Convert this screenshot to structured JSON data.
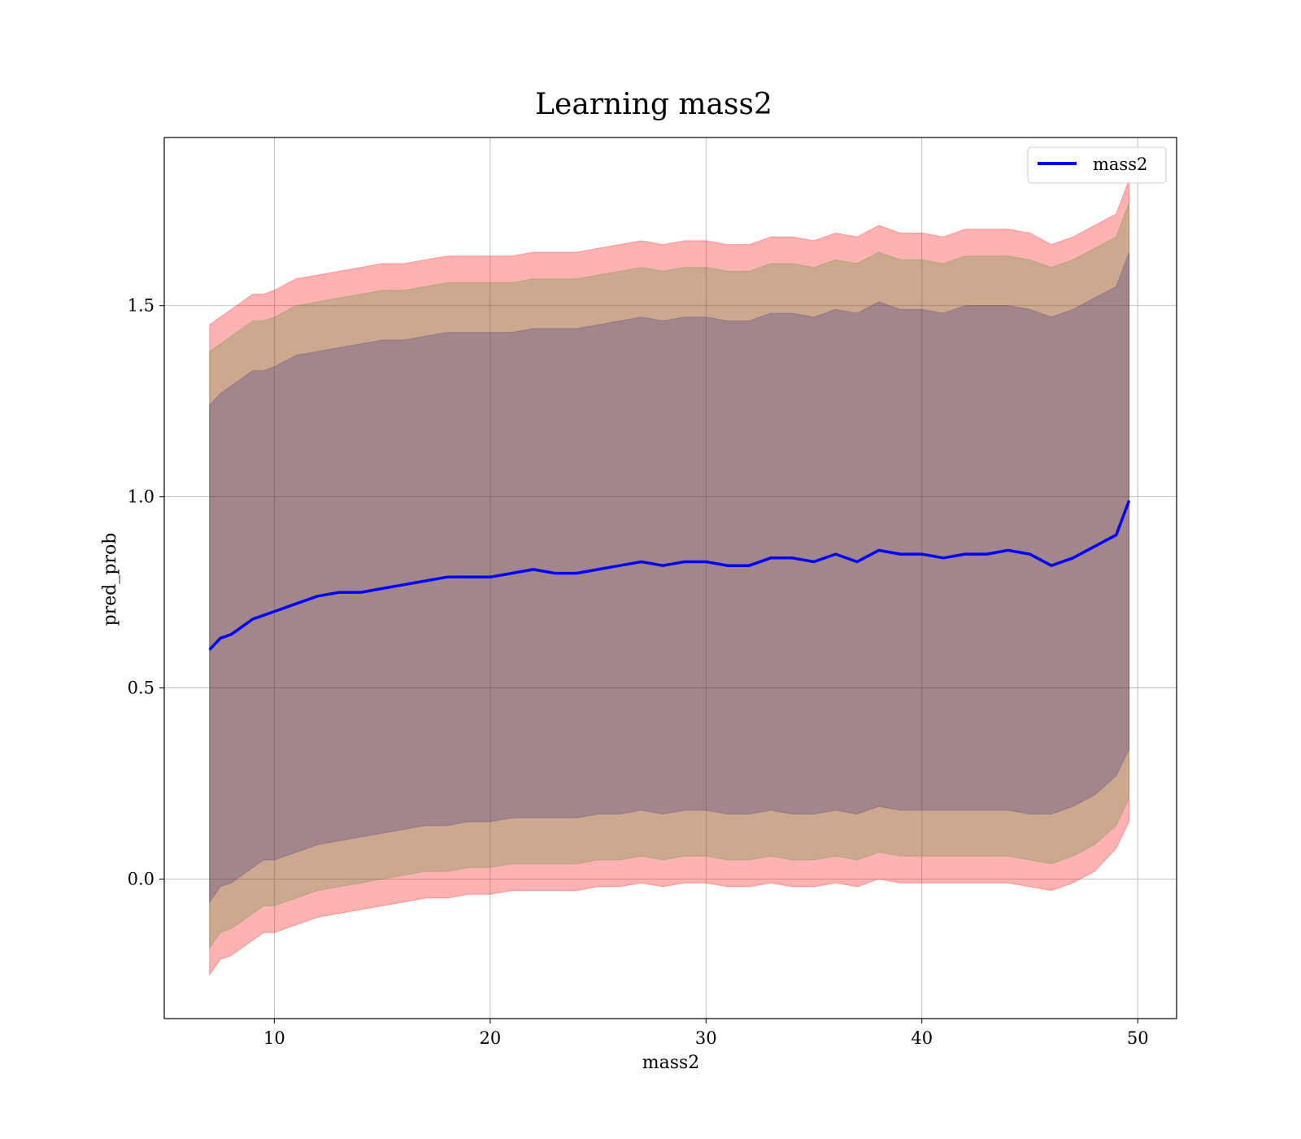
{
  "chart_data": {
    "type": "line",
    "title": "Learning mass2",
    "xlabel": "mass2",
    "ylabel": "pred_prob",
    "xlim": [
      4.9,
      51.8
    ],
    "ylim": [
      -0.365,
      1.94
    ],
    "xticks": [
      10,
      20,
      30,
      40,
      50
    ],
    "xtick_labels": [
      "10",
      "20",
      "30",
      "40",
      "50"
    ],
    "yticks": [
      0.0,
      0.5,
      1.0,
      1.5
    ],
    "ytick_labels": [
      "0.0",
      "0.5",
      "1.0",
      "1.5"
    ],
    "grid": true,
    "legend_position": "top-right",
    "series": [
      {
        "name": "mass2",
        "color": "#0000ff",
        "x": [
          7.0,
          7.5,
          8.0,
          8.5,
          9.0,
          9.5,
          10.0,
          11.0,
          12.0,
          13.0,
          14.0,
          15.0,
          16.0,
          17.0,
          18.0,
          19.0,
          20.0,
          21.0,
          22.0,
          23.0,
          24.0,
          25.0,
          26.0,
          27.0,
          28.0,
          29.0,
          30.0,
          31.0,
          32.0,
          33.0,
          34.0,
          35.0,
          36.0,
          37.0,
          38.0,
          39.0,
          40.0,
          41.0,
          42.0,
          43.0,
          44.0,
          45.0,
          46.0,
          47.0,
          48.0,
          49.0,
          49.6
        ],
        "y": [
          0.6,
          0.63,
          0.64,
          0.66,
          0.68,
          0.69,
          0.7,
          0.72,
          0.74,
          0.75,
          0.75,
          0.76,
          0.77,
          0.78,
          0.79,
          0.79,
          0.79,
          0.8,
          0.81,
          0.8,
          0.8,
          0.81,
          0.82,
          0.83,
          0.82,
          0.83,
          0.83,
          0.82,
          0.82,
          0.84,
          0.84,
          0.83,
          0.85,
          0.83,
          0.86,
          0.85,
          0.85,
          0.84,
          0.85,
          0.85,
          0.86,
          0.85,
          0.82,
          0.84,
          0.87,
          0.9,
          0.99
        ]
      }
    ],
    "bands": [
      {
        "color": "#ff0000",
        "opacity": 0.3,
        "lower": [
          -0.25,
          -0.21,
          -0.2,
          -0.18,
          -0.16,
          -0.14,
          -0.14,
          -0.12,
          -0.1,
          -0.09,
          -0.08,
          -0.07,
          -0.06,
          -0.05,
          -0.05,
          -0.04,
          -0.04,
          -0.03,
          -0.03,
          -0.03,
          -0.03,
          -0.02,
          -0.02,
          -0.01,
          -0.02,
          -0.01,
          -0.01,
          -0.02,
          -0.02,
          -0.01,
          -0.02,
          -0.02,
          -0.01,
          -0.02,
          0.0,
          -0.01,
          -0.01,
          -0.01,
          -0.01,
          -0.01,
          -0.01,
          -0.02,
          -0.03,
          -0.01,
          0.02,
          0.08,
          0.15
        ],
        "upper": [
          1.45,
          1.47,
          1.49,
          1.51,
          1.53,
          1.53,
          1.54,
          1.57,
          1.58,
          1.59,
          1.6,
          1.61,
          1.61,
          1.62,
          1.63,
          1.63,
          1.63,
          1.63,
          1.64,
          1.64,
          1.64,
          1.65,
          1.66,
          1.67,
          1.66,
          1.67,
          1.67,
          1.66,
          1.66,
          1.68,
          1.68,
          1.67,
          1.69,
          1.68,
          1.71,
          1.69,
          1.69,
          1.68,
          1.7,
          1.7,
          1.7,
          1.69,
          1.66,
          1.68,
          1.71,
          1.74,
          1.83
        ]
      },
      {
        "color": "#008000",
        "opacity": 0.2,
        "lower": [
          -0.18,
          -0.14,
          -0.13,
          -0.11,
          -0.09,
          -0.07,
          -0.07,
          -0.05,
          -0.03,
          -0.02,
          -0.01,
          0.0,
          0.01,
          0.02,
          0.02,
          0.03,
          0.03,
          0.04,
          0.04,
          0.04,
          0.04,
          0.05,
          0.05,
          0.06,
          0.05,
          0.06,
          0.06,
          0.05,
          0.05,
          0.06,
          0.05,
          0.05,
          0.06,
          0.05,
          0.07,
          0.06,
          0.06,
          0.06,
          0.06,
          0.06,
          0.06,
          0.05,
          0.04,
          0.06,
          0.09,
          0.14,
          0.21
        ],
        "upper": [
          1.38,
          1.4,
          1.42,
          1.44,
          1.46,
          1.46,
          1.47,
          1.5,
          1.51,
          1.52,
          1.53,
          1.54,
          1.54,
          1.55,
          1.56,
          1.56,
          1.56,
          1.56,
          1.57,
          1.57,
          1.57,
          1.58,
          1.59,
          1.6,
          1.59,
          1.6,
          1.6,
          1.59,
          1.59,
          1.61,
          1.61,
          1.6,
          1.62,
          1.61,
          1.64,
          1.62,
          1.62,
          1.61,
          1.63,
          1.63,
          1.63,
          1.62,
          1.6,
          1.62,
          1.65,
          1.68,
          1.77
        ]
      },
      {
        "color": "#000080",
        "opacity": 0.2,
        "lower": [
          -0.06,
          -0.02,
          -0.01,
          0.01,
          0.03,
          0.05,
          0.05,
          0.07,
          0.09,
          0.1,
          0.11,
          0.12,
          0.13,
          0.14,
          0.14,
          0.15,
          0.15,
          0.16,
          0.16,
          0.16,
          0.16,
          0.17,
          0.17,
          0.18,
          0.17,
          0.18,
          0.18,
          0.17,
          0.17,
          0.18,
          0.17,
          0.17,
          0.18,
          0.17,
          0.19,
          0.18,
          0.18,
          0.18,
          0.18,
          0.18,
          0.18,
          0.17,
          0.17,
          0.19,
          0.22,
          0.27,
          0.34
        ],
        "upper": [
          1.24,
          1.27,
          1.29,
          1.31,
          1.33,
          1.33,
          1.34,
          1.37,
          1.38,
          1.39,
          1.4,
          1.41,
          1.41,
          1.42,
          1.43,
          1.43,
          1.43,
          1.43,
          1.44,
          1.44,
          1.44,
          1.45,
          1.46,
          1.47,
          1.46,
          1.47,
          1.47,
          1.46,
          1.46,
          1.48,
          1.48,
          1.47,
          1.49,
          1.48,
          1.51,
          1.49,
          1.49,
          1.48,
          1.5,
          1.5,
          1.5,
          1.49,
          1.47,
          1.49,
          1.52,
          1.55,
          1.64
        ]
      }
    ]
  }
}
